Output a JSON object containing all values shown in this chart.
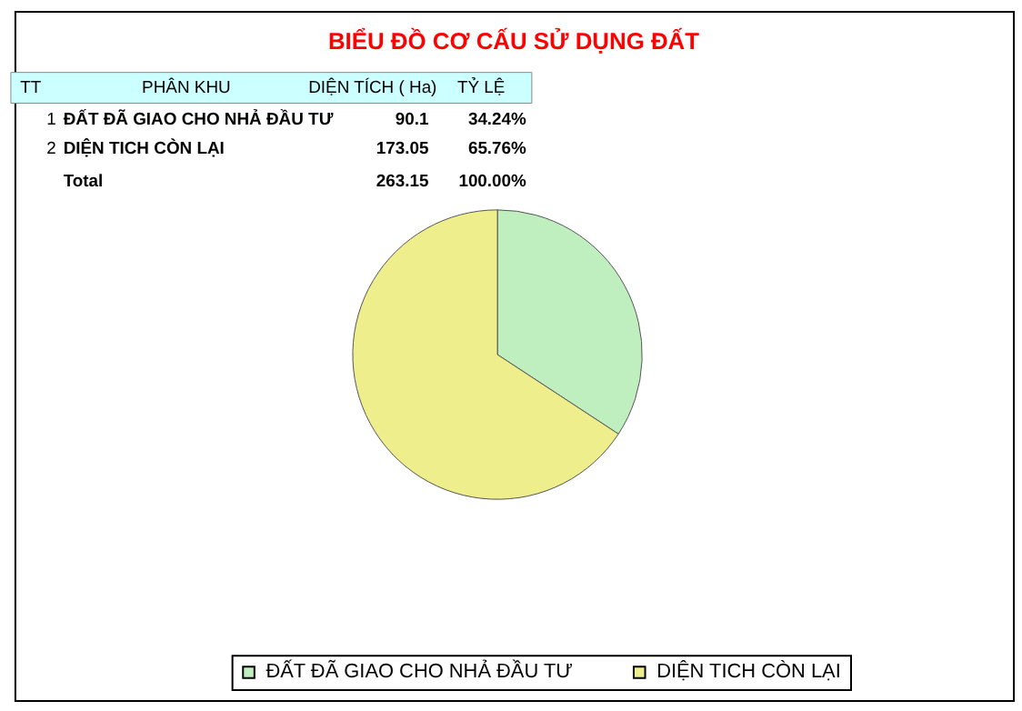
{
  "chart_data": {
    "type": "pie",
    "title": "BIỂU ĐỒ CƠ CẤU SỬ DỤNG ĐẤT",
    "categories": [
      "ĐẤT ĐÃ GIAO CHO NHẢ ĐẦU TƯ",
      "DIỆN TICH CÒN LẠI"
    ],
    "values": [
      34.24,
      65.76
    ],
    "colors": [
      "#bfeebf",
      "#eeee8c"
    ],
    "legend": "bottom",
    "annotations": [
      "TT",
      "PHÂN KHU",
      "DIỆN TÍCH ( Ha)",
      "TỶ LỆ",
      "1",
      "2",
      "34.24%",
      "65.76%",
      "Total",
      "263.15",
      "100.00%",
      "90.1",
      "173.05"
    ]
  }
}
